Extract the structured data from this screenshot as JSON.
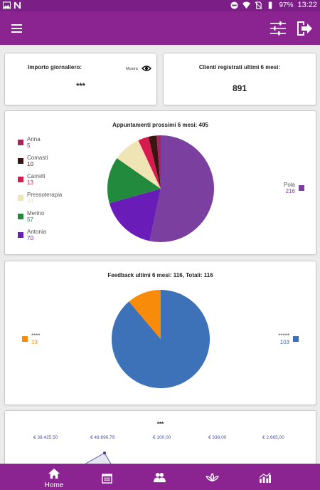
{
  "status_bar": {
    "battery": "97%",
    "time": "13:22",
    "left_icons": [
      "gallery-icon",
      "notification-n-icon"
    ],
    "right_icons": [
      "dnd-icon",
      "wifi-icon",
      "no-sim-icon",
      "battery-icon"
    ]
  },
  "app_bar": {
    "icons": [
      "menu-icon",
      "filter-icon",
      "logout-icon"
    ]
  },
  "card_importo": {
    "title": "Importo giornaliero:",
    "toggle_label": "Mostra",
    "value": "***"
  },
  "card_clienti": {
    "title": "Clienti registrati ultimi 6 mesi:",
    "value": "891"
  },
  "card_appuntamenti": {
    "title": "Appuntamenti prossimi 6 mesi: 405",
    "chart_data": {
      "type": "pie",
      "slices": [
        {
          "name": "Pola",
          "value": 216,
          "color": "#7b3fa0"
        },
        {
          "name": "Antonia",
          "value": 70,
          "color": "#6a1cb8"
        },
        {
          "name": "Merino",
          "value": 57,
          "color": "#218a3c"
        },
        {
          "name": "Pressoterapia",
          "value": 34,
          "color": "#efe5b4"
        },
        {
          "name": "Carrelli",
          "value": 13,
          "color": "#d81b4e"
        },
        {
          "name": "Comasti",
          "value": 10,
          "color": "#3b1512"
        },
        {
          "name": "Anna",
          "value": 5,
          "color": "#a8245c"
        }
      ],
      "legend_left": [
        "Anna",
        "Comasti",
        "Carrelli",
        "Pressoterapia",
        "Merino",
        "Antonia"
      ],
      "legend_right": [
        "Pola"
      ]
    }
  },
  "card_feedback": {
    "title": "Feedback ultimi 6 mesi: 116, Totali: 116",
    "chart_data": {
      "type": "pie",
      "slices": [
        {
          "name": "*****",
          "value": 103,
          "color": "#3d72b9"
        },
        {
          "name": "****",
          "value": 13,
          "color": "#f98b0b"
        }
      ],
      "legend_left": [
        "****"
      ],
      "legend_right": [
        "*****"
      ]
    }
  },
  "card_incassi": {
    "title": "***",
    "values": [
      "€ 38.425,50",
      "€ 49.896,79",
      "€ 100,00",
      "€ 338,00",
      "€ 2.665,00"
    ]
  },
  "bottom_nav": {
    "items": [
      {
        "label": "Home",
        "icon": "home-icon"
      },
      {
        "label": "",
        "icon": "calendar-icon"
      },
      {
        "label": "",
        "icon": "clients-icon"
      },
      {
        "label": "",
        "icon": "lotus-icon"
      },
      {
        "label": "",
        "icon": "stats-icon"
      }
    ]
  }
}
